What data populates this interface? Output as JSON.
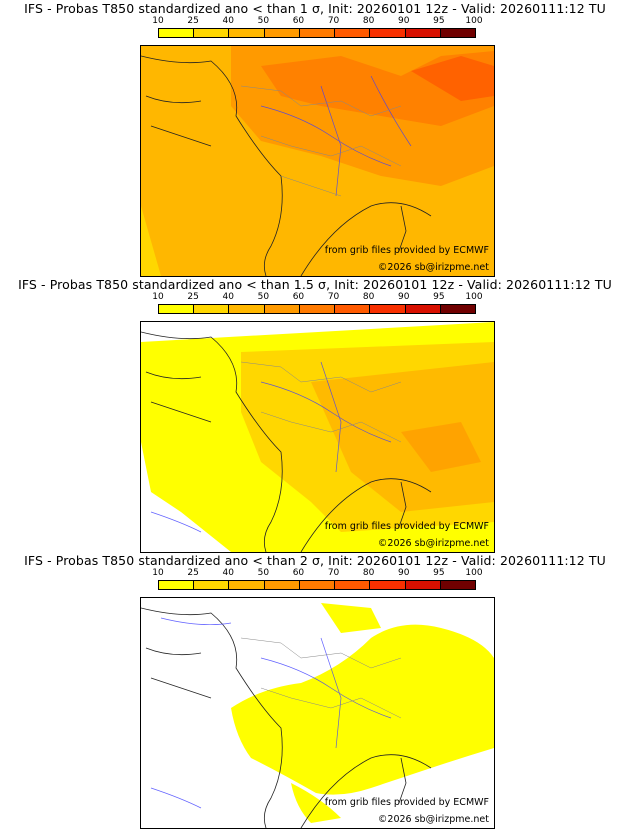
{
  "panels": [
    {
      "title": "IFS - Probas T850  standardized ano < than 1 σ, Init: 20260101 12z - Valid: 20260111:12 TU",
      "credit_source": "from grib files provided by ECMWF",
      "credit_copyright": "©2026 sb@irizpme.net"
    },
    {
      "title": "IFS - Probas T850  standardized ano < than 1.5 σ, Init: 20260101 12z - Valid: 20260111:12 TU",
      "credit_source": "from grib files provided by ECMWF",
      "credit_copyright": "©2026 sb@irizpme.net"
    },
    {
      "title": "IFS - Probas T850  standardized ano < than 2 σ, Init: 20260101 12z - Valid: 20260111:12 TU",
      "credit_source": "from grib files provided by ECMWF",
      "credit_copyright": "©2026 sb@irizpme.net"
    }
  ],
  "scale": {
    "labels": [
      "10",
      "25",
      "40",
      "50",
      "60",
      "70",
      "80",
      "90",
      "95",
      "100"
    ],
    "colors": [
      "#ffff00",
      "#ffd700",
      "#ffb700",
      "#ff9a00",
      "#ff7a00",
      "#ff5a00",
      "#f83000",
      "#d81000",
      "#a80000",
      "#700000"
    ]
  }
}
